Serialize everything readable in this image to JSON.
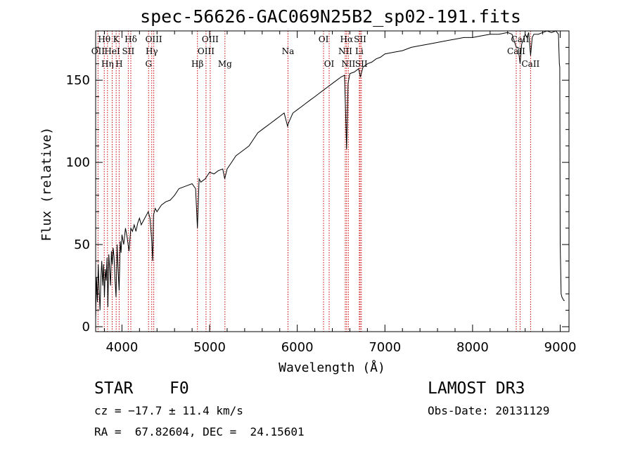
{
  "chart_data": {
    "type": "line",
    "title": "spec-56626-GAC069N25B2_sp02-191.fits",
    "xlabel": "Wavelength (Å)",
    "ylabel": "Flux (relative)",
    "xlim": [
      3700,
      9100
    ],
    "ylim": [
      -3,
      180
    ],
    "xticks": [
      {
        "value": 4000,
        "label": "4000"
      },
      {
        "value": 5000,
        "label": "5000"
      },
      {
        "value": 6000,
        "label": "6000"
      },
      {
        "value": 7000,
        "label": "7000"
      },
      {
        "value": 8000,
        "label": "8000"
      },
      {
        "value": 9000,
        "label": "9000"
      }
    ],
    "yticks": [
      {
        "value": 0,
        "label": "0"
      },
      {
        "value": 50,
        "label": "50"
      },
      {
        "value": 100,
        "label": "100"
      },
      {
        "value": 150,
        "label": "150"
      }
    ],
    "series": [
      {
        "name": "spectrum",
        "x": [
          3700,
          3710,
          3720,
          3730,
          3740,
          3750,
          3760,
          3770,
          3780,
          3790,
          3800,
          3810,
          3820,
          3830,
          3840,
          3850,
          3860,
          3870,
          3880,
          3889,
          3900,
          3910,
          3920,
          3933,
          3945,
          3955,
          3968,
          3980,
          3990,
          4000,
          4020,
          4040,
          4060,
          4080,
          4101,
          4120,
          4140,
          4160,
          4180,
          4200,
          4220,
          4250,
          4280,
          4300,
          4320,
          4340,
          4350,
          4360,
          4380,
          4400,
          4450,
          4500,
          4550,
          4600,
          4650,
          4700,
          4750,
          4800,
          4840,
          4861,
          4880,
          4900,
          4950,
          5000,
          5050,
          5100,
          5150,
          5172,
          5200,
          5250,
          5300,
          5350,
          5400,
          5450,
          5500,
          5550,
          5600,
          5650,
          5700,
          5750,
          5800,
          5850,
          5890,
          5900,
          5950,
          6000,
          6050,
          6100,
          6150,
          6200,
          6250,
          6300,
          6350,
          6400,
          6450,
          6500,
          6540,
          6563,
          6580,
          6600,
          6650,
          6700,
          6720,
          6750,
          6800,
          6850,
          6900,
          6950,
          7000,
          7100,
          7200,
          7300,
          7400,
          7500,
          7600,
          7700,
          7800,
          7900,
          8000,
          8100,
          8200,
          8300,
          8400,
          8450,
          8498,
          8520,
          8542,
          8560,
          8600,
          8620,
          8640,
          8662,
          8680,
          8700,
          8750,
          8800,
          8850,
          8900,
          8950,
          8980,
          8990,
          8995,
          9000,
          9010,
          9020,
          9030,
          9040,
          9050
        ],
        "y": [
          5,
          30,
          15,
          38,
          22,
          10,
          30,
          40,
          25,
          38,
          18,
          35,
          28,
          42,
          12,
          44,
          35,
          25,
          46,
          38,
          48,
          42,
          30,
          18,
          50,
          36,
          22,
          52,
          45,
          56,
          50,
          60,
          54,
          46,
          60,
          58,
          62,
          58,
          63,
          66,
          62,
          65,
          68,
          70,
          66,
          52,
          40,
          68,
          72,
          70,
          74,
          76,
          77,
          80,
          84,
          85,
          86,
          87,
          84,
          60,
          90,
          88,
          90,
          94,
          93,
          95,
          96,
          90,
          96,
          100,
          104,
          106,
          108,
          110,
          114,
          118,
          120,
          122,
          124,
          126,
          128,
          130,
          122,
          124,
          130,
          132,
          134,
          136,
          138,
          140,
          142,
          144,
          146,
          148,
          150,
          152,
          153,
          108,
          148,
          154,
          155,
          157,
          152,
          158,
          160,
          161,
          163,
          164,
          166,
          167,
          168,
          170,
          171,
          172,
          173,
          174,
          175,
          176,
          176,
          177,
          178,
          178,
          179,
          178,
          170,
          170,
          160,
          172,
          178,
          176,
          179,
          165,
          176,
          178,
          178,
          179,
          180,
          179,
          180,
          178,
          160,
          158,
          50,
          20,
          18,
          17,
          16,
          16
        ]
      }
    ],
    "lines": [
      {
        "name": "OII",
        "wavelength": 3727,
        "row": 1
      },
      {
        "name": "Hθ",
        "wavelength": 3798,
        "row": 0
      },
      {
        "name": "Hη",
        "wavelength": 3835,
        "row": 2
      },
      {
        "name": "HeI",
        "wavelength": 3889,
        "row": 1
      },
      {
        "name": "K",
        "wavelength": 3934,
        "row": 0
      },
      {
        "name": "H",
        "wavelength": 3968,
        "row": 2
      },
      {
        "name": "SII",
        "wavelength": 4072,
        "row": 1
      },
      {
        "name": "Hδ",
        "wavelength": 4101,
        "row": 0
      },
      {
        "name": "G",
        "wavelength": 4304,
        "row": 2
      },
      {
        "name": "Hγ",
        "wavelength": 4340,
        "row": 1
      },
      {
        "name": "OIII",
        "wavelength": 4363,
        "row": 0
      },
      {
        "name": "Hβ",
        "wavelength": 4861,
        "row": 2
      },
      {
        "name": "OIII",
        "wavelength": 4959,
        "row": 1
      },
      {
        "name": "OIII",
        "wavelength": 5007,
        "row": 0
      },
      {
        "name": "Mg",
        "wavelength": 5175,
        "row": 2
      },
      {
        "name": "Na",
        "wavelength": 5894,
        "row": 1
      },
      {
        "name": "OI",
        "wavelength": 6300,
        "row": 0
      },
      {
        "name": "OI",
        "wavelength": 6364,
        "row": 2
      },
      {
        "name": "NII",
        "wavelength": 6548,
        "row": 1
      },
      {
        "name": "Hα",
        "wavelength": 6563,
        "row": 0
      },
      {
        "name": "NII",
        "wavelength": 6583,
        "row": 2
      },
      {
        "name": "Li",
        "wavelength": 6708,
        "row": 1
      },
      {
        "name": "SII",
        "wavelength": 6717,
        "row": 0
      },
      {
        "name": "SII",
        "wavelength": 6731,
        "row": 2
      },
      {
        "name": "CaII",
        "wavelength": 8498,
        "row": 1
      },
      {
        "name": "CaII",
        "wavelength": 8542,
        "row": 0
      },
      {
        "name": "CaII",
        "wavelength": 8662,
        "row": 2
      }
    ]
  },
  "info": {
    "class": "STAR",
    "subclass": "F0",
    "survey": "LAMOST DR3",
    "redshift": "cz = −17.7 ± 11.4 km/s",
    "obs_date": "Obs-Date: 20131129",
    "coords": "RA =  67.82604, DEC =  24.15601"
  },
  "colors": {
    "axes": "#000000",
    "spectrum": "#000000",
    "line_markers": "#cc0000"
  }
}
